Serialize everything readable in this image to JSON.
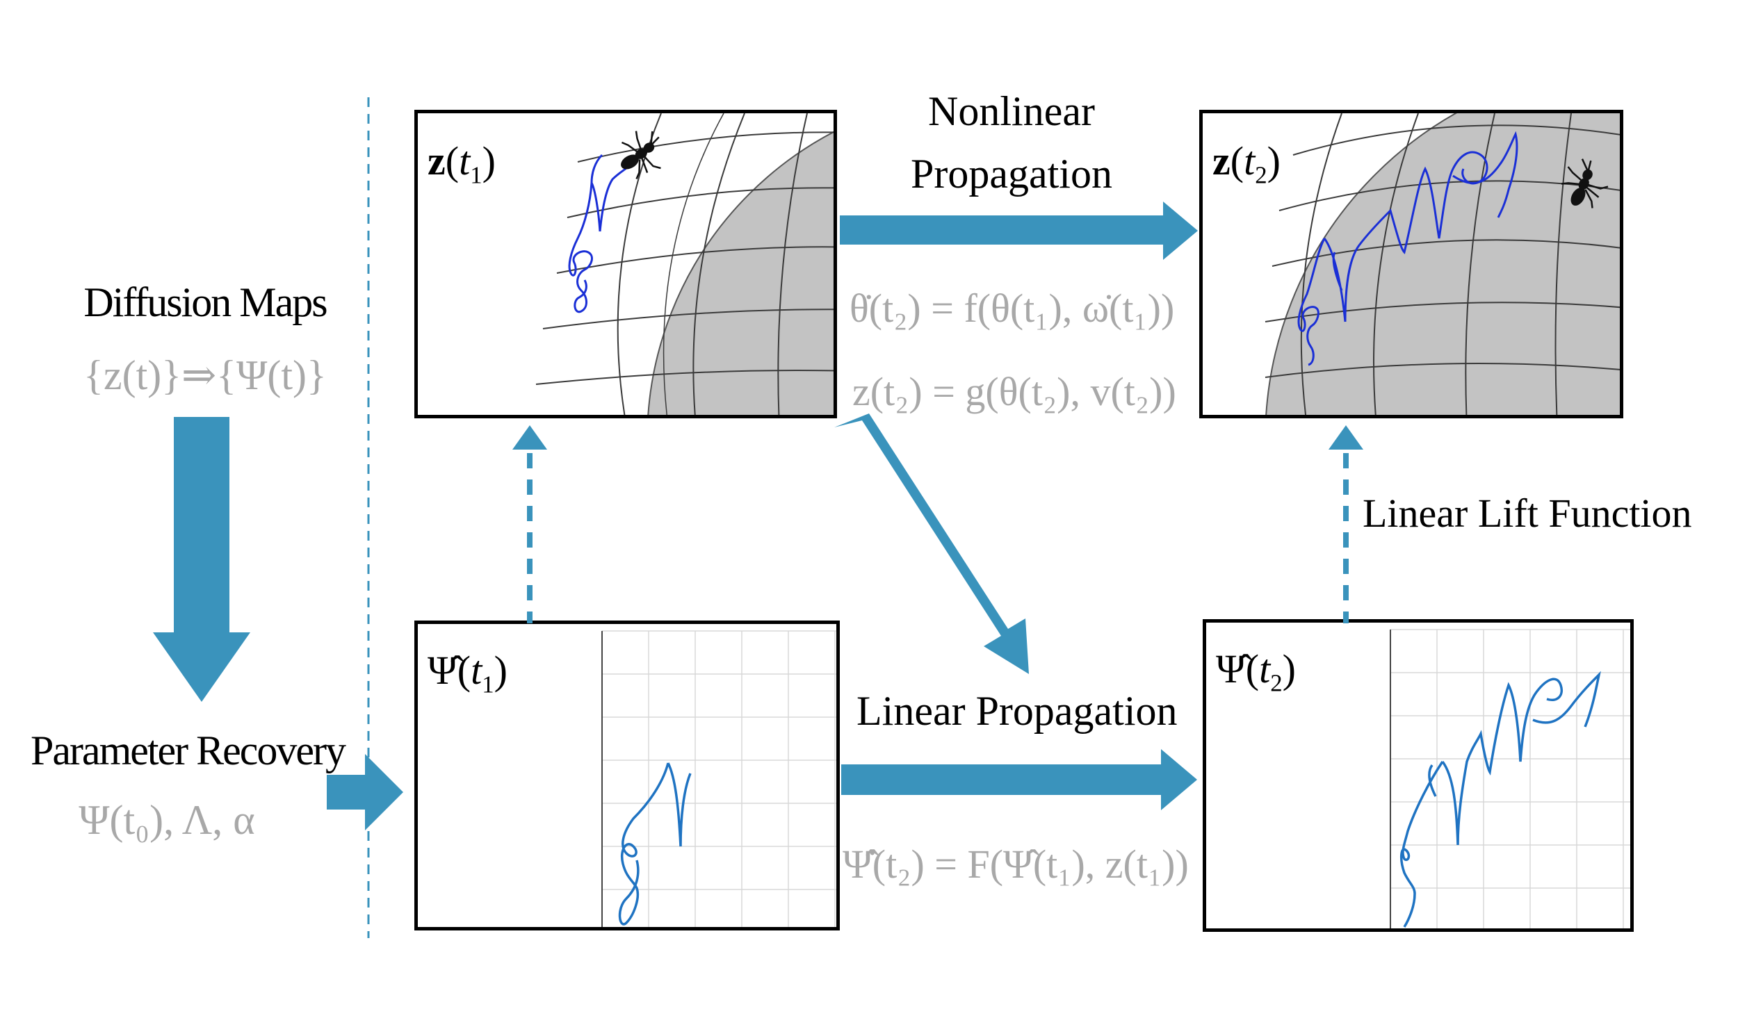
{
  "left_column": {
    "title": "Diffusion Maps",
    "mapping": "{z(t)}⇒{Ψ(t)}",
    "recovery_title": "Parameter Recovery",
    "recovery_params": "Ψ(t₀), Λ, α"
  },
  "panels": {
    "top_left": {
      "label_symbol": "z",
      "label_time": "t",
      "label_sub": "1"
    },
    "top_right": {
      "label_symbol": "z",
      "label_time": "t",
      "label_sub": "2"
    },
    "bottom_left": {
      "label_symbol": "Ψ̂",
      "label_time": "t",
      "label_sub": "1"
    },
    "bottom_right": {
      "label_symbol": "Ψ̂",
      "label_time": "t",
      "label_sub": "2"
    }
  },
  "arrows": {
    "nonlinear_line1": "Nonlinear",
    "nonlinear_line2": "Propagation",
    "linear": "Linear Propagation",
    "lift": "Linear Lift Function"
  },
  "equations": {
    "eq1": "θ̇(t₂) = f(θ(t₁), ω̇(t₁))",
    "eq2": "z(t₂) = g(θ(t₂), v(t₂))",
    "eq3": "Ψ̂̇(t₂) = F(Ψ̂(t₁), z(t₁))"
  },
  "colors": {
    "arrow": "#3a93bc",
    "trajectory_sphere": "#1a2fd6",
    "trajectory_plot": "#1f73c2",
    "sphere": "#c3c3c3",
    "equation_text": "#a8a8a8"
  },
  "icons": [
    "ant-icon"
  ]
}
